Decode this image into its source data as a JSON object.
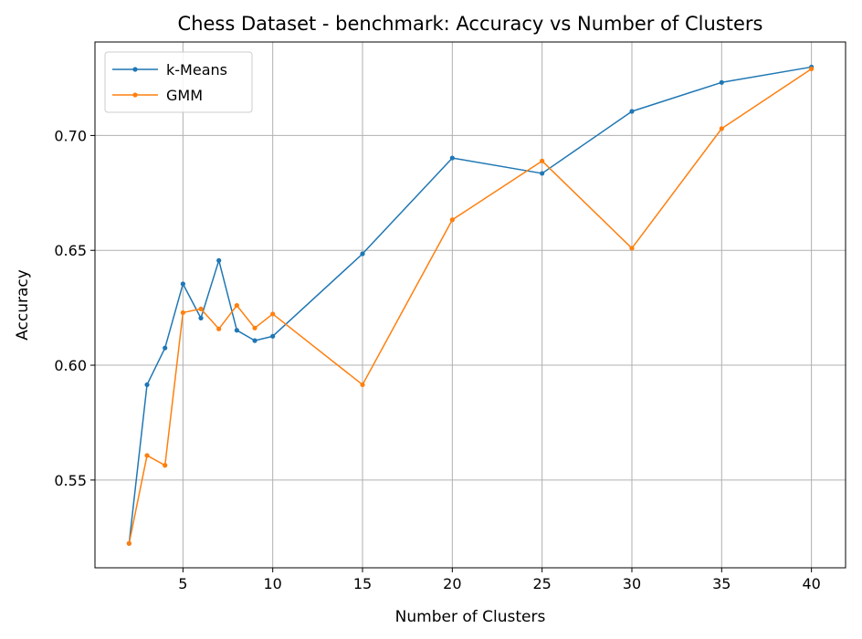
{
  "chart_data": {
    "type": "line",
    "title": "Chess Dataset - benchmark: Accuracy vs Number of Clusters",
    "xlabel": "Number of Clusters",
    "ylabel": "Accuracy",
    "x": [
      2,
      3,
      4,
      5,
      6,
      7,
      8,
      9,
      10,
      15,
      20,
      25,
      30,
      35,
      40
    ],
    "xticks": [
      5,
      10,
      15,
      20,
      25,
      30,
      35,
      40
    ],
    "yticks": [
      0.55,
      0.6,
      0.65,
      0.7
    ],
    "xlim": [
      0.1,
      41.9
    ],
    "ylim": [
      0.5118,
      0.7407
    ],
    "grid": true,
    "legend_position": "upper-left",
    "series": [
      {
        "name": "k-Means",
        "color": "#1f77b4",
        "values": [
          0.5224,
          0.5915,
          0.6075,
          0.6354,
          0.6205,
          0.6456,
          0.6152,
          0.6107,
          0.6126,
          0.6485,
          0.6902,
          0.6835,
          0.7105,
          0.7231,
          0.7298
        ]
      },
      {
        "name": "GMM",
        "color": "#ff7f0e",
        "values": [
          0.5224,
          0.5607,
          0.5564,
          0.6229,
          0.6245,
          0.6158,
          0.626,
          0.6162,
          0.6223,
          0.5915,
          0.6633,
          0.6889,
          0.6509,
          0.703,
          0.729
        ]
      }
    ]
  }
}
